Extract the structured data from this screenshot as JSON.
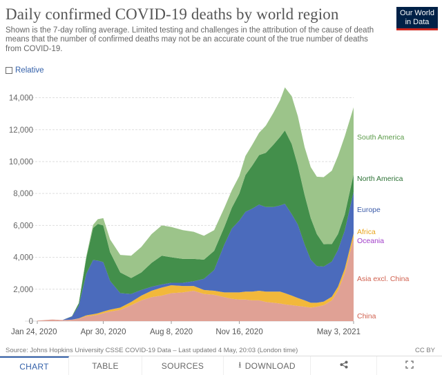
{
  "header": {
    "title": "Daily confirmed COVID-19 deaths by world region",
    "subtitle": "Shown is the 7-day rolling average. Limited testing and challenges in the attribution of the cause of death means that the number of confirmed deaths may not be an accurate count of the true number of deaths from COVID-19.",
    "logo_line1": "Our World",
    "logo_line2": "in Data"
  },
  "controls": {
    "relative_label": "Relative"
  },
  "footer": {
    "source": "Source: Johns Hopkins University CSSE COVID-19 Data – Last updated 4 May, 20:03 (London time)",
    "license": "CC BY"
  },
  "tabs": [
    {
      "label": "CHART",
      "icon": ""
    },
    {
      "label": "TABLE",
      "icon": ""
    },
    {
      "label": "SOURCES",
      "icon": ""
    },
    {
      "label": "DOWNLOAD",
      "icon": "download-icon"
    },
    {
      "label": "",
      "icon": "share-icon"
    },
    {
      "label": "",
      "icon": "fullscreen-icon"
    }
  ],
  "chart_data": {
    "type": "area",
    "stacked": true,
    "x": [
      "2020-01-24",
      "2020-02-15",
      "2020-03-01",
      "2020-03-15",
      "2020-03-25",
      "2020-04-05",
      "2020-04-15",
      "2020-04-22",
      "2020-04-30",
      "2020-05-10",
      "2020-05-25",
      "2020-06-10",
      "2020-06-25",
      "2020-07-10",
      "2020-07-25",
      "2020-08-08",
      "2020-08-25",
      "2020-09-10",
      "2020-09-25",
      "2020-10-10",
      "2020-10-25",
      "2020-11-05",
      "2020-11-16",
      "2020-11-25",
      "2020-12-05",
      "2020-12-15",
      "2020-12-25",
      "2021-01-05",
      "2021-01-15",
      "2021-01-22",
      "2021-02-01",
      "2021-02-10",
      "2021-02-20",
      "2021-03-01",
      "2021-03-10",
      "2021-03-20",
      "2021-04-01",
      "2021-04-10",
      "2021-04-20",
      "2021-05-03"
    ],
    "xticks": [
      "Jan 24, 2020",
      "Apr 30, 2020",
      "Aug 8, 2020",
      "Nov 16, 2020",
      "May 3, 2021"
    ],
    "yticks": [
      0,
      2000,
      4000,
      6000,
      8000,
      10000,
      12000,
      14000
    ],
    "ytick_labels": [
      "0",
      "2,000",
      "4,000",
      "6,000",
      "8,000",
      "10,000",
      "12,000",
      "14,000"
    ],
    "ylim": [
      0,
      14500
    ],
    "series": [
      {
        "name": "China",
        "color": "#e0a195",
        "values": [
          30,
          100,
          40,
          5,
          2,
          2,
          2,
          2,
          2,
          2,
          2,
          2,
          2,
          2,
          2,
          2,
          2,
          2,
          2,
          2,
          2,
          2,
          2,
          2,
          2,
          2,
          2,
          2,
          2,
          2,
          2,
          2,
          2,
          2,
          2,
          2,
          2,
          2,
          2,
          2
        ]
      },
      {
        "name": "Asia excl. China",
        "color": "#e0a195",
        "values": [
          0,
          5,
          30,
          80,
          150,
          300,
          350,
          400,
          500,
          600,
          700,
          1000,
          1300,
          1500,
          1600,
          1750,
          1800,
          1900,
          1700,
          1650,
          1500,
          1400,
          1350,
          1350,
          1300,
          1300,
          1200,
          1150,
          1100,
          1050,
          1000,
          950,
          900,
          850,
          900,
          1000,
          1300,
          1900,
          3000,
          5200
        ]
      },
      {
        "name": "Oceania",
        "color": "#a34ec8",
        "values": [
          0,
          0,
          0,
          0,
          0,
          0,
          0,
          0,
          0,
          0,
          0,
          0,
          0,
          0,
          0,
          0,
          0,
          0,
          0,
          0,
          0,
          0,
          0,
          0,
          0,
          0,
          0,
          0,
          0,
          0,
          0,
          0,
          0,
          0,
          0,
          0,
          0,
          0,
          0,
          0
        ]
      },
      {
        "name": "Africa",
        "color": "#f2b83b",
        "values": [
          0,
          0,
          0,
          5,
          20,
          60,
          80,
          90,
          100,
          120,
          150,
          200,
          300,
          400,
          500,
          500,
          400,
          300,
          250,
          250,
          300,
          400,
          450,
          500,
          550,
          600,
          650,
          700,
          750,
          700,
          600,
          500,
          400,
          300,
          250,
          220,
          230,
          250,
          280,
          300
        ]
      },
      {
        "name": "Europe",
        "color": "#4b6bbc",
        "values": [
          0,
          0,
          0,
          200,
          800,
          2600,
          3400,
          3300,
          3100,
          1800,
          900,
          500,
          350,
          250,
          200,
          150,
          200,
          300,
          700,
          1300,
          3000,
          4000,
          4500,
          5000,
          5200,
          5400,
          5300,
          5300,
          5400,
          5600,
          5100,
          4600,
          3500,
          2700,
          2300,
          2200,
          2200,
          2300,
          2400,
          2600
        ]
      },
      {
        "name": "North America",
        "color": "#438f4b",
        "values": [
          0,
          0,
          0,
          20,
          150,
          1000,
          2000,
          2300,
          2300,
          1800,
          1300,
          1000,
          1100,
          1500,
          1800,
          1600,
          1500,
          1400,
          1200,
          1200,
          1100,
          1300,
          1700,
          2300,
          2700,
          3100,
          3400,
          3900,
          4300,
          4600,
          4400,
          3700,
          3100,
          2600,
          2000,
          1400,
          1100,
          1000,
          1000,
          1100
        ]
      },
      {
        "name": "South America",
        "color": "#9cc48a",
        "values": [
          0,
          0,
          0,
          5,
          20,
          100,
          200,
          300,
          450,
          800,
          1100,
          1400,
          1600,
          1800,
          1900,
          1900,
          1800,
          1700,
          1500,
          1300,
          1200,
          1100,
          1100,
          1200,
          1300,
          1400,
          1700,
          2000,
          2300,
          2700,
          3000,
          3100,
          3000,
          3200,
          3600,
          4200,
          4600,
          4900,
          4900,
          4200
        ]
      }
    ],
    "labels": [
      {
        "text": "South America",
        "color": "#5a9a48"
      },
      {
        "text": "North America",
        "color": "#2e7236"
      },
      {
        "text": "Europe",
        "color": "#3b5ba8"
      },
      {
        "text": "Africa",
        "color": "#e8a31a"
      },
      {
        "text": "Oceania",
        "color": "#a03ec8"
      },
      {
        "text": "Asia excl. China",
        "color": "#d0604e"
      },
      {
        "text": "China",
        "color": "#d0604e"
      }
    ]
  }
}
